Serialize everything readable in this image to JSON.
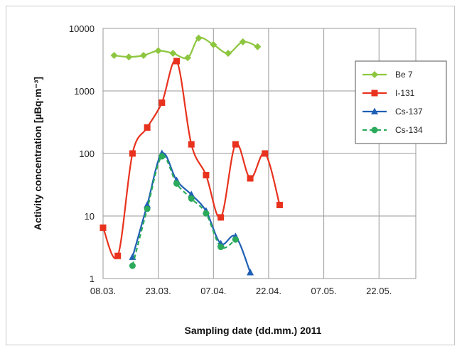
{
  "chart_data": {
    "type": "line",
    "title": "",
    "xlabel": "Sampling date (dd.mm.) 2011",
    "ylabel": "Activity concentration  [µBq·m⁻³]",
    "yscale": "log",
    "ylim": [
      1,
      10000
    ],
    "xlim": [
      "2011-03-08",
      "2011-06-01"
    ],
    "grid": true,
    "legend": "right",
    "x_ticks": [
      {
        "date": "2011-03-08",
        "label": "08.03."
      },
      {
        "date": "2011-03-23",
        "label": "23.03."
      },
      {
        "date": "2011-04-07",
        "label": "07.04."
      },
      {
        "date": "2011-04-22",
        "label": "22.04."
      },
      {
        "date": "2011-05-07",
        "label": "07.05."
      },
      {
        "date": "2011-05-22",
        "label": "22.05."
      }
    ],
    "y_ticks": [
      {
        "value": 10000,
        "label": "10000"
      },
      {
        "value": 1000,
        "label": "1000"
      },
      {
        "value": 100,
        "label": "100"
      },
      {
        "value": 10,
        "label": "10"
      },
      {
        "value": 1,
        "label": "1"
      }
    ],
    "series": [
      {
        "name": "Be 7",
        "color": "#8dc63f",
        "marker": "diamond",
        "dashed": false,
        "points": [
          {
            "x": "2011-03-11",
            "y": 3700
          },
          {
            "x": "2011-03-15",
            "y": 3500
          },
          {
            "x": "2011-03-19",
            "y": 3700
          },
          {
            "x": "2011-03-23",
            "y": 4400
          },
          {
            "x": "2011-03-27",
            "y": 4000
          },
          {
            "x": "2011-03-31",
            "y": 3400
          },
          {
            "x": "2011-04-03",
            "y": 7000
          },
          {
            "x": "2011-04-07",
            "y": 5500
          },
          {
            "x": "2011-04-11",
            "y": 4000
          },
          {
            "x": "2011-04-15",
            "y": 6100
          },
          {
            "x": "2011-04-19",
            "y": 5100
          }
        ]
      },
      {
        "name": "I-131",
        "color": "#e8321e",
        "marker": "square",
        "dashed": false,
        "points": [
          {
            "x": "2011-03-08",
            "y": 6.5
          },
          {
            "x": "2011-03-12",
            "y": 2.3
          },
          {
            "x": "2011-03-16",
            "y": 100
          },
          {
            "x": "2011-03-20",
            "y": 260
          },
          {
            "x": "2011-03-24",
            "y": 650
          },
          {
            "x": "2011-03-28",
            "y": 3000
          },
          {
            "x": "2011-04-01",
            "y": 140
          },
          {
            "x": "2011-04-05",
            "y": 45
          },
          {
            "x": "2011-04-09",
            "y": 9.5
          },
          {
            "x": "2011-04-13",
            "y": 140
          },
          {
            "x": "2011-04-17",
            "y": 40
          },
          {
            "x": "2011-04-21",
            "y": 100
          },
          {
            "x": "2011-04-25",
            "y": 15
          }
        ]
      },
      {
        "name": "Cs-137",
        "color": "#1f5fb4",
        "marker": "triangle",
        "dashed": false,
        "points": [
          {
            "x": "2011-03-16",
            "y": 2.2
          },
          {
            "x": "2011-03-20",
            "y": 15
          },
          {
            "x": "2011-03-24",
            "y": 100
          },
          {
            "x": "2011-03-28",
            "y": 37
          },
          {
            "x": "2011-04-01",
            "y": 22
          },
          {
            "x": "2011-04-05",
            "y": 12
          },
          {
            "x": "2011-04-09",
            "y": 3.6
          },
          {
            "x": "2011-04-13",
            "y": 4.7
          },
          {
            "x": "2011-04-17",
            "y": 1.25
          }
        ]
      },
      {
        "name": "Cs-134",
        "color": "#2aaa5a",
        "marker": "circle",
        "dashed": true,
        "points": [
          {
            "x": "2011-03-16",
            "y": 1.6
          },
          {
            "x": "2011-03-20",
            "y": 13
          },
          {
            "x": "2011-03-24",
            "y": 90
          },
          {
            "x": "2011-03-28",
            "y": 33
          },
          {
            "x": "2011-04-01",
            "y": 19
          },
          {
            "x": "2011-04-05",
            "y": 11
          },
          {
            "x": "2011-04-09",
            "y": 3.2
          },
          {
            "x": "2011-04-13",
            "y": 4.2
          }
        ]
      }
    ]
  }
}
